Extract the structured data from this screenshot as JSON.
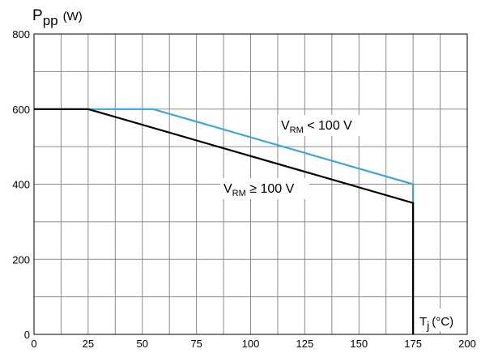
{
  "chart_data": {
    "type": "line",
    "ylabel": {
      "main": "P",
      "sub": "pp",
      "unit": "(W)"
    },
    "xlabel": {
      "main": "T",
      "sub": "j",
      "unit": "(°C)"
    },
    "xlim": [
      0,
      200
    ],
    "ylim": [
      0,
      800
    ],
    "x_ticks": [
      0,
      25,
      50,
      75,
      100,
      125,
      150,
      175,
      200
    ],
    "y_ticks": [
      0,
      200,
      400,
      600,
      800
    ],
    "x_tick_labels": [
      "0",
      "25",
      "50",
      "75",
      "100",
      "125",
      "150",
      "175",
      "200"
    ],
    "y_tick_labels": [
      "0",
      "200",
      "400",
      "600",
      "800"
    ],
    "grid": true,
    "series": [
      {
        "name": {
          "main": "V",
          "sub": "RM",
          "rest": " < 100 V"
        },
        "color": "#3ea6d6",
        "points": [
          [
            0,
            600
          ],
          [
            55,
            600
          ],
          [
            175,
            400
          ],
          [
            175,
            0
          ]
        ]
      },
      {
        "name": {
          "main": "V",
          "sub": "RM",
          "rest": " ≥ 100 V"
        },
        "color": "#000000",
        "points": [
          [
            0,
            600
          ],
          [
            25,
            600
          ],
          [
            175,
            350
          ],
          [
            175,
            0
          ]
        ]
      }
    ]
  }
}
